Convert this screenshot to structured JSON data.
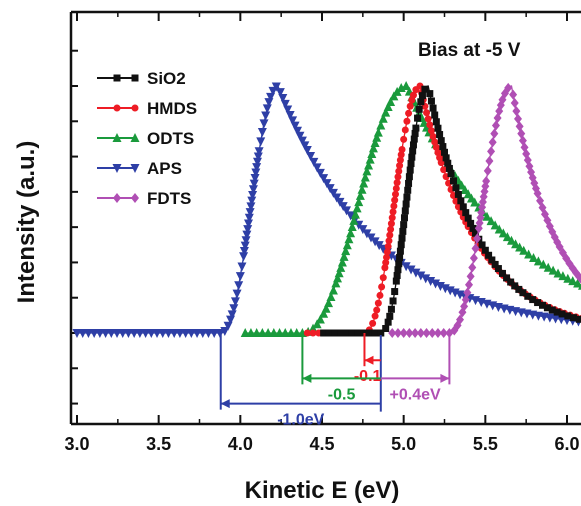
{
  "chart_data": {
    "type": "line",
    "title": "Bias at -5 V",
    "xlabel": "Kinetic E (eV)",
    "ylabel": "Intensity (a.u.)",
    "xlim": [
      3.0,
      6.1
    ],
    "ylim": [
      -0.7,
      2.85
    ],
    "x_ticks": [
      "3.0",
      "3.5",
      "4.0",
      "4.5",
      "5.0",
      "5.5",
      "6.0"
    ],
    "x_tick_values": [
      3.0,
      3.5,
      4.0,
      4.5,
      5.0,
      5.5,
      6.0
    ],
    "legend_position": "top-left",
    "grid": false,
    "series": [
      {
        "name": "SiO2",
        "color": "#111111",
        "marker": "square",
        "onset": 4.86,
        "peak": 5.15,
        "amplitude": 2.45,
        "base": 0.0,
        "width_left": 0.12,
        "decay": 0.32
      },
      {
        "name": "HMDS",
        "color": "#ee1c25",
        "marker": "circle",
        "onset": 4.76,
        "peak": 5.1,
        "amplitude": 2.45,
        "base": 0.0,
        "width_left": 0.13,
        "decay": 0.35
      },
      {
        "name": "ODTS",
        "color": "#1a9a3c",
        "marker": "triangle-up",
        "onset": 4.38,
        "peak": 5.02,
        "amplitude": 2.45,
        "base": 0.0,
        "width_left": 0.24,
        "decay": 0.65
      },
      {
        "name": "APS",
        "color": "#2e3fa6",
        "marker": "triangle-down",
        "onset": 3.88,
        "peak": 4.23,
        "amplitude": 2.45,
        "base": 0.0,
        "width_left": 0.14,
        "decay": 0.6
      },
      {
        "name": "FDTS",
        "color": "#b04fb4",
        "marker": "diamond",
        "onset": 5.28,
        "peak": 5.66,
        "amplitude": 2.45,
        "base": 0.0,
        "width_left": 0.14,
        "decay": 0.28
      }
    ],
    "annotations": [
      {
        "text": "-0.1",
        "color": "#ee1c25",
        "from": 4.86,
        "to": 4.76,
        "level": -0.27
      },
      {
        "text": "-0.5",
        "color": "#1a9a3c",
        "from": 4.86,
        "to": 4.38,
        "level": -0.45
      },
      {
        "text": "-1.0eV",
        "color": "#2e3fa6",
        "from": 4.86,
        "to": 3.88,
        "level": -0.7
      },
      {
        "text": "+0.4eV",
        "color": "#b04fb4",
        "from": 4.86,
        "to": 5.28,
        "level": -0.45
      }
    ]
  }
}
